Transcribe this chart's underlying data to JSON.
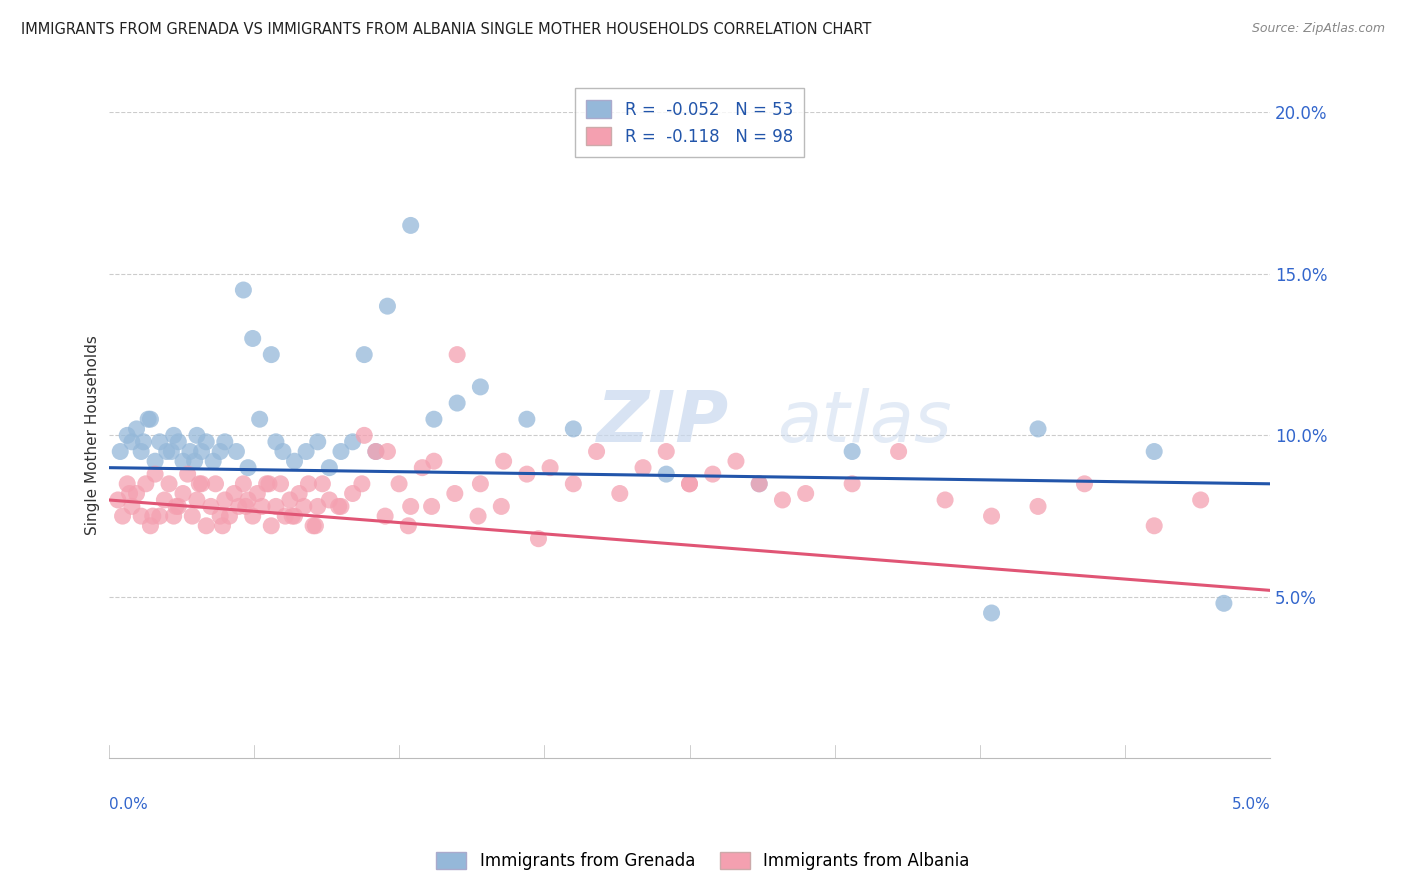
{
  "title": "IMMIGRANTS FROM GRENADA VS IMMIGRANTS FROM ALBANIA SINGLE MOTHER HOUSEHOLDS CORRELATION CHART",
  "source": "Source: ZipAtlas.com",
  "ylabel": "Single Mother Households",
  "legend_label_blue": "Immigrants from Grenada",
  "legend_label_pink": "Immigrants from Albania",
  "legend_line1": "R =  -0.052   N = 53",
  "legend_line2": "R =  -0.118   N = 98",
  "watermark": "ZIPatlas",
  "blue_color": "#95b8d9",
  "pink_color": "#f4a0b0",
  "blue_line_color": "#2255aa",
  "pink_line_color": "#e05575",
  "xmin": 0.0,
  "xmax": 5.0,
  "ymin": 0.0,
  "ymax": 20.0,
  "blue_scatter_x": [
    0.05,
    0.08,
    0.1,
    0.12,
    0.14,
    0.15,
    0.18,
    0.2,
    0.22,
    0.25,
    0.28,
    0.3,
    0.32,
    0.35,
    0.38,
    0.4,
    0.42,
    0.45,
    0.48,
    0.5,
    0.55,
    0.58,
    0.6,
    0.62,
    0.65,
    0.7,
    0.72,
    0.75,
    0.8,
    0.85,
    0.9,
    0.95,
    1.0,
    1.05,
    1.1,
    1.15,
    1.2,
    1.3,
    1.4,
    1.5,
    1.6,
    1.8,
    2.0,
    2.4,
    2.8,
    3.2,
    3.8,
    4.0,
    4.5,
    4.8,
    0.17,
    0.27,
    0.37
  ],
  "blue_scatter_y": [
    9.5,
    10.0,
    9.8,
    10.2,
    9.5,
    9.8,
    10.5,
    9.2,
    9.8,
    9.5,
    10.0,
    9.8,
    9.2,
    9.5,
    10.0,
    9.5,
    9.8,
    9.2,
    9.5,
    9.8,
    9.5,
    14.5,
    9.0,
    13.0,
    10.5,
    12.5,
    9.8,
    9.5,
    9.2,
    9.5,
    9.8,
    9.0,
    9.5,
    9.8,
    12.5,
    9.5,
    14.0,
    16.5,
    10.5,
    11.0,
    11.5,
    10.5,
    10.2,
    8.8,
    8.5,
    9.5,
    4.5,
    10.2,
    9.5,
    4.8,
    10.5,
    9.5,
    9.2
  ],
  "pink_scatter_x": [
    0.04,
    0.06,
    0.08,
    0.1,
    0.12,
    0.14,
    0.16,
    0.18,
    0.2,
    0.22,
    0.24,
    0.26,
    0.28,
    0.3,
    0.32,
    0.34,
    0.36,
    0.38,
    0.4,
    0.42,
    0.44,
    0.46,
    0.48,
    0.5,
    0.52,
    0.54,
    0.56,
    0.58,
    0.6,
    0.62,
    0.64,
    0.66,
    0.68,
    0.7,
    0.72,
    0.74,
    0.76,
    0.78,
    0.8,
    0.82,
    0.84,
    0.86,
    0.88,
    0.9,
    0.92,
    0.95,
    1.0,
    1.05,
    1.1,
    1.15,
    1.2,
    1.25,
    1.3,
    1.35,
    1.4,
    1.5,
    1.6,
    1.7,
    1.8,
    1.9,
    2.0,
    2.1,
    2.2,
    2.3,
    2.4,
    2.5,
    2.6,
    2.7,
    2.8,
    2.9,
    3.0,
    3.2,
    3.4,
    3.6,
    3.8,
    4.0,
    4.2,
    4.5,
    4.7,
    0.09,
    0.19,
    0.29,
    0.39,
    0.49,
    0.59,
    0.69,
    0.79,
    0.89,
    0.99,
    1.09,
    1.19,
    1.29,
    1.39,
    1.49,
    1.59,
    1.69,
    1.85,
    2.5
  ],
  "pink_scatter_y": [
    8.0,
    7.5,
    8.5,
    7.8,
    8.2,
    7.5,
    8.5,
    7.2,
    8.8,
    7.5,
    8.0,
    8.5,
    7.5,
    7.8,
    8.2,
    8.8,
    7.5,
    8.0,
    8.5,
    7.2,
    7.8,
    8.5,
    7.5,
    8.0,
    7.5,
    8.2,
    7.8,
    8.5,
    8.0,
    7.5,
    8.2,
    7.8,
    8.5,
    7.2,
    7.8,
    8.5,
    7.5,
    8.0,
    7.5,
    8.2,
    7.8,
    8.5,
    7.2,
    7.8,
    8.5,
    8.0,
    7.8,
    8.2,
    10.0,
    9.5,
    9.5,
    8.5,
    7.8,
    9.0,
    9.2,
    12.5,
    8.5,
    9.2,
    8.8,
    9.0,
    8.5,
    9.5,
    8.2,
    9.0,
    9.5,
    8.5,
    8.8,
    9.2,
    8.5,
    8.0,
    8.2,
    8.5,
    9.5,
    8.0,
    7.5,
    7.8,
    8.5,
    7.2,
    8.0,
    8.2,
    7.5,
    7.8,
    8.5,
    7.2,
    7.8,
    8.5,
    7.5,
    7.2,
    7.8,
    8.5,
    7.5,
    7.2,
    7.8,
    8.2,
    7.5,
    7.8,
    6.8,
    8.5
  ]
}
